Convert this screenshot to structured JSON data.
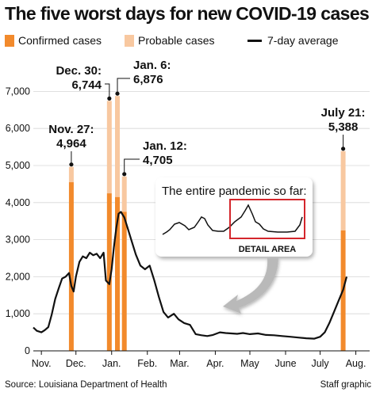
{
  "title": "The five worst days for new COVID-19 cases",
  "legend": {
    "confirmed": "Confirmed cases",
    "probable": "Probable cases",
    "average": "7-day average"
  },
  "colors": {
    "confirmed": "#f28a2c",
    "probable": "#f8c8a0",
    "line": "#111111",
    "detail_box": "#d4262c"
  },
  "source": "Source: Louisiana Department of Health",
  "credit": "Staff graphic",
  "inset": {
    "title": "The entire pandemic so far:",
    "detail_label": "DETAIL AREA"
  },
  "chart_data": {
    "type": "bar",
    "title": "The five worst days for new COVID-19 cases",
    "x_type": "date",
    "xlim": [
      "2020-10-25",
      "2021-08-13"
    ],
    "x_ticks": [
      {
        "label": "Nov.",
        "date": "2020-11-01"
      },
      {
        "label": "Dec.",
        "date": "2020-12-01"
      },
      {
        "label": "Jan.",
        "date": "2021-01-01"
      },
      {
        "label": "Feb.",
        "date": "2021-02-01"
      },
      {
        "label": "Mar.",
        "date": "2021-03-01"
      },
      {
        "label": "Apr.",
        "date": "2021-04-01"
      },
      {
        "label": "May",
        "date": "2021-05-01"
      },
      {
        "label": "June",
        "date": "2021-06-01"
      },
      {
        "label": "July",
        "date": "2021-07-01"
      },
      {
        "label": "Aug.",
        "date": "2021-08-01"
      }
    ],
    "ylim": [
      0,
      7500
    ],
    "y_ticks": [
      0,
      1000,
      2000,
      3000,
      4000,
      5000,
      6000,
      7000
    ],
    "grid": "horizontal",
    "bars": [
      {
        "label": "Nov. 27",
        "value_label": "4,964",
        "date": "2020-11-27",
        "total": 4964,
        "confirmed": 4550
      },
      {
        "label": "Dec. 30",
        "value_label": "6,744",
        "date": "2020-12-30",
        "total": 6744,
        "confirmed": 4250
      },
      {
        "label": "Jan. 6",
        "value_label": "6,876",
        "date": "2021-01-06",
        "total": 6876,
        "confirmed": 4150
      },
      {
        "label": "Jan. 12",
        "value_label": "4,705",
        "date": "2021-01-12",
        "total": 4705,
        "confirmed": 3750
      },
      {
        "label": "July 21",
        "value_label": "5,388",
        "date": "2021-07-21",
        "total": 5388,
        "confirmed": 3250
      }
    ],
    "series": [
      {
        "name": "7-day average",
        "type": "line",
        "points": [
          [
            "2020-10-25",
            630
          ],
          [
            "2020-10-28",
            540
          ],
          [
            "2020-11-01",
            500
          ],
          [
            "2020-11-04",
            560
          ],
          [
            "2020-11-07",
            640
          ],
          [
            "2020-11-10",
            980
          ],
          [
            "2020-11-13",
            1400
          ],
          [
            "2020-11-16",
            1680
          ],
          [
            "2020-11-19",
            1950
          ],
          [
            "2020-11-22",
            2000
          ],
          [
            "2020-11-25",
            2100
          ],
          [
            "2020-11-27",
            1750
          ],
          [
            "2020-11-29",
            1600
          ],
          [
            "2020-12-01",
            2000
          ],
          [
            "2020-12-04",
            2400
          ],
          [
            "2020-12-07",
            2550
          ],
          [
            "2020-12-10",
            2500
          ],
          [
            "2020-12-13",
            2650
          ],
          [
            "2020-12-16",
            2580
          ],
          [
            "2020-12-19",
            2620
          ],
          [
            "2020-12-22",
            2500
          ],
          [
            "2020-12-25",
            2650
          ],
          [
            "2020-12-27",
            1900
          ],
          [
            "2020-12-30",
            1800
          ],
          [
            "2021-01-01",
            2200
          ],
          [
            "2021-01-03",
            2800
          ],
          [
            "2021-01-05",
            3300
          ],
          [
            "2021-01-07",
            3700
          ],
          [
            "2021-01-09",
            3750
          ],
          [
            "2021-01-12",
            3600
          ],
          [
            "2021-01-15",
            3300
          ],
          [
            "2021-01-18",
            3000
          ],
          [
            "2021-01-22",
            2600
          ],
          [
            "2021-01-26",
            2300
          ],
          [
            "2021-01-30",
            2200
          ],
          [
            "2021-02-03",
            2300
          ],
          [
            "2021-02-07",
            1900
          ],
          [
            "2021-02-11",
            1450
          ],
          [
            "2021-02-15",
            1050
          ],
          [
            "2021-02-19",
            900
          ],
          [
            "2021-02-24",
            1000
          ],
          [
            "2021-02-28",
            850
          ],
          [
            "2021-03-05",
            750
          ],
          [
            "2021-03-10",
            700
          ],
          [
            "2021-03-15",
            450
          ],
          [
            "2021-03-20",
            420
          ],
          [
            "2021-03-25",
            400
          ],
          [
            "2021-03-30",
            430
          ],
          [
            "2021-04-05",
            500
          ],
          [
            "2021-04-10",
            480
          ],
          [
            "2021-04-15",
            470
          ],
          [
            "2021-04-20",
            460
          ],
          [
            "2021-04-25",
            480
          ],
          [
            "2021-05-01",
            450
          ],
          [
            "2021-05-08",
            470
          ],
          [
            "2021-05-15",
            430
          ],
          [
            "2021-05-22",
            420
          ],
          [
            "2021-05-29",
            400
          ],
          [
            "2021-06-05",
            380
          ],
          [
            "2021-06-12",
            360
          ],
          [
            "2021-06-19",
            340
          ],
          [
            "2021-06-26",
            330
          ],
          [
            "2021-07-01",
            380
          ],
          [
            "2021-07-05",
            500
          ],
          [
            "2021-07-09",
            750
          ],
          [
            "2021-07-13",
            1050
          ],
          [
            "2021-07-17",
            1350
          ],
          [
            "2021-07-21",
            1650
          ],
          [
            "2021-07-24",
            2000
          ]
        ]
      }
    ]
  }
}
